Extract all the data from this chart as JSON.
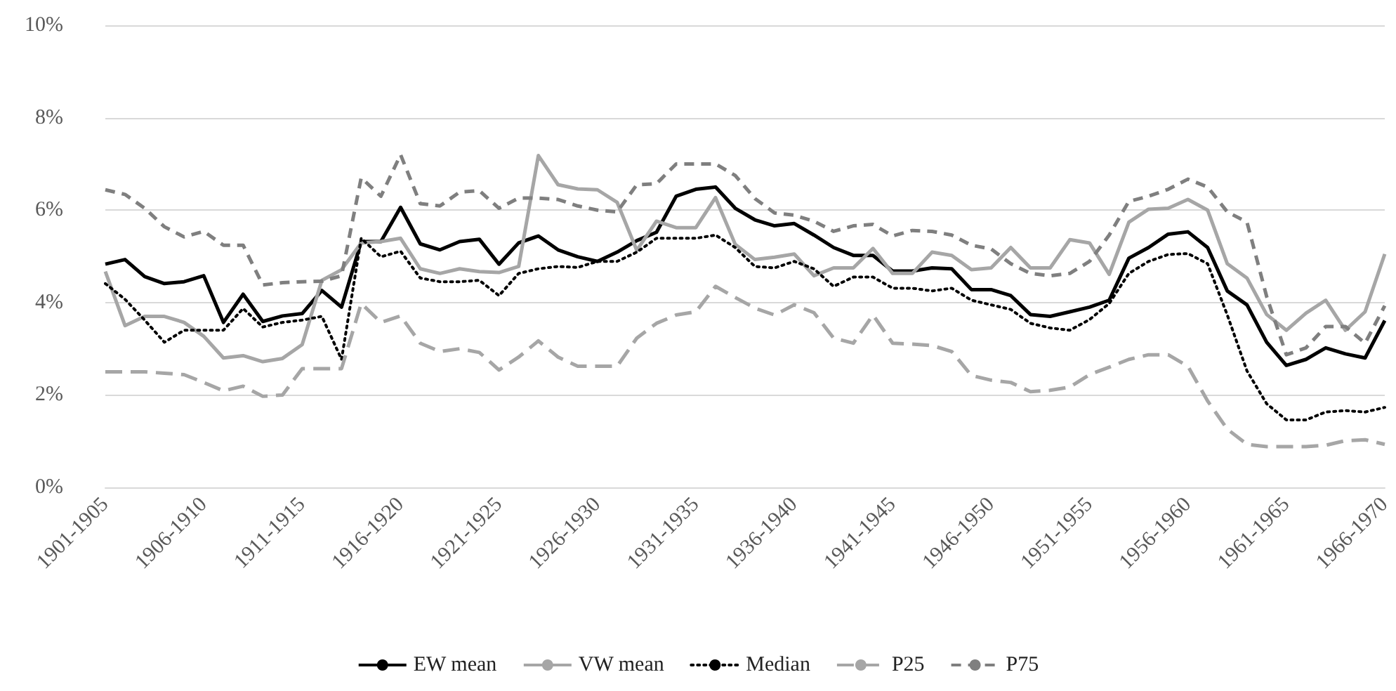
{
  "chart_data": {
    "type": "line",
    "categories": [
      "1901-1905",
      null,
      null,
      null,
      null,
      "1906-1910",
      null,
      null,
      null,
      null,
      "1911-1915",
      null,
      null,
      null,
      null,
      "1916-1920",
      null,
      null,
      null,
      null,
      "1921-1925",
      null,
      null,
      null,
      null,
      "1926-1930",
      null,
      null,
      null,
      null,
      "1931-1935",
      null,
      null,
      null,
      null,
      "1936-1940",
      null,
      null,
      null,
      null,
      "1941-1945",
      null,
      null,
      null,
      null,
      "1946-1950",
      null,
      null,
      null,
      null,
      "1951-1955",
      null,
      null,
      null,
      null,
      "1956-1960",
      null,
      null,
      null,
      null,
      "1961-1965",
      null,
      null,
      null,
      null,
      "1966-1970"
    ],
    "series": [
      {
        "name": "EW mean",
        "color": "#000000",
        "line_style": "solid",
        "values": [
          4.83,
          4.93,
          4.56,
          4.41,
          4.45,
          4.58,
          3.57,
          4.18,
          3.59,
          3.71,
          3.76,
          4.26,
          3.9,
          5.32,
          5.32,
          6.06,
          5.27,
          5.14,
          5.32,
          5.37,
          4.83,
          5.29,
          5.44,
          5.14,
          4.99,
          4.89,
          5.09,
          5.34,
          5.52,
          6.3,
          6.45,
          6.5,
          6.04,
          5.79,
          5.66,
          5.71,
          5.46,
          5.19,
          5.02,
          5.02,
          4.68,
          4.68,
          4.75,
          4.73,
          4.28,
          4.28,
          4.15,
          3.74,
          3.7,
          3.8,
          3.9,
          4.05,
          4.96,
          5.19,
          5.48,
          5.53,
          5.19,
          4.25,
          3.95,
          3.14,
          2.64,
          2.77,
          3.02,
          2.89,
          2.8,
          3.61
        ]
      },
      {
        "name": "VW mean",
        "color": "#a6a6a6",
        "line_style": "solid",
        "values": [
          4.67,
          3.5,
          3.7,
          3.7,
          3.57,
          3.27,
          2.8,
          2.85,
          2.72,
          2.79,
          3.09,
          4.48,
          4.71,
          5.29,
          5.32,
          5.39,
          4.73,
          4.63,
          4.73,
          4.67,
          4.65,
          4.78,
          7.18,
          6.55,
          6.46,
          6.44,
          6.17,
          5.13,
          5.76,
          5.62,
          5.62,
          6.27,
          5.26,
          4.93,
          4.98,
          5.05,
          4.58,
          4.75,
          4.75,
          5.17,
          4.63,
          4.63,
          5.09,
          5.02,
          4.71,
          4.75,
          5.19,
          4.75,
          4.75,
          5.36,
          5.29,
          4.61,
          5.74,
          6.02,
          6.04,
          6.23,
          6,
          4.84,
          4.53,
          3.74,
          3.4,
          3.77,
          4.05,
          3.4,
          3.8,
          5.05
        ]
      },
      {
        "name": "Median",
        "color": "#000000",
        "line_style": "dotted",
        "values": [
          4.41,
          4.07,
          3.62,
          3.14,
          3.4,
          3.4,
          3.4,
          3.87,
          3.47,
          3.57,
          3.62,
          3.7,
          2.77,
          5.39,
          4.99,
          5.11,
          4.53,
          4.45,
          4.45,
          4.48,
          4.15,
          4.63,
          4.73,
          4.78,
          4.76,
          4.89,
          4.89,
          5.09,
          5.39,
          5.39,
          5.39,
          5.46,
          5.19,
          4.78,
          4.75,
          4.89,
          4.73,
          4.35,
          4.55,
          4.55,
          4.31,
          4.31,
          4.25,
          4.31,
          4.05,
          3.95,
          3.85,
          3.55,
          3.45,
          3.4,
          3.63,
          3.98,
          4.63,
          4.89,
          5.04,
          5.06,
          4.84,
          3.73,
          2.52,
          1.81,
          1.46,
          1.46,
          1.63,
          1.66,
          1.63,
          1.73
        ]
      },
      {
        "name": "P25",
        "color": "#a6a6a6",
        "line_style": "longdash",
        "values": [
          2.5,
          2.5,
          2.5,
          2.47,
          2.44,
          2.27,
          2.09,
          2.19,
          1.97,
          2,
          2.57,
          2.57,
          2.57,
          3.98,
          3.57,
          3.71,
          3.12,
          2.94,
          3,
          2.92,
          2.54,
          2.82,
          3.17,
          2.82,
          2.62,
          2.62,
          2.62,
          3.23,
          3.55,
          3.73,
          3.8,
          4.35,
          4.11,
          3.88,
          3.73,
          3.95,
          3.78,
          3.23,
          3.12,
          3.73,
          3.12,
          3.1,
          3.07,
          2.94,
          2.42,
          2.32,
          2.27,
          2.07,
          2.1,
          2.17,
          2.44,
          2.6,
          2.77,
          2.87,
          2.87,
          2.62,
          1.87,
          1.26,
          0.93,
          0.88,
          0.88,
          0.88,
          0.91,
          1.01,
          1.03,
          0.93
        ]
      },
      {
        "name": "P75",
        "color": "#7f7f7f",
        "line_style": "dashed",
        "values": [
          6.44,
          6.34,
          6.04,
          5.64,
          5.42,
          5.54,
          5.24,
          5.24,
          4.38,
          4.43,
          4.45,
          4.46,
          4.58,
          6.7,
          6.3,
          7.2,
          6.14,
          6.09,
          6.39,
          6.42,
          6.04,
          6.26,
          6.26,
          6.23,
          6.09,
          6,
          5.96,
          6.55,
          6.57,
          7,
          7,
          7,
          6.75,
          6.25,
          5.94,
          5.89,
          5.76,
          5.54,
          5.66,
          5.69,
          5.44,
          5.56,
          5.54,
          5.46,
          5.24,
          5.16,
          4.84,
          4.63,
          4.58,
          4.63,
          4.89,
          5.46,
          6.19,
          6.3,
          6.45,
          6.67,
          6.5,
          5.96,
          5.74,
          4.13,
          2.87,
          3.02,
          3.48,
          3.48,
          3.12,
          3.93
        ]
      }
    ],
    "ylim": [
      0,
      10
    ],
    "yticks": [
      {
        "value": 0,
        "label": "0%"
      },
      {
        "value": 2,
        "label": "2%"
      },
      {
        "value": 4,
        "label": "4%"
      },
      {
        "value": 6,
        "label": "6%"
      },
      {
        "value": 8,
        "label": "8%"
      },
      {
        "value": 10,
        "label": "10%"
      }
    ],
    "grid": "y",
    "legend": "bottom",
    "marker": "none"
  }
}
